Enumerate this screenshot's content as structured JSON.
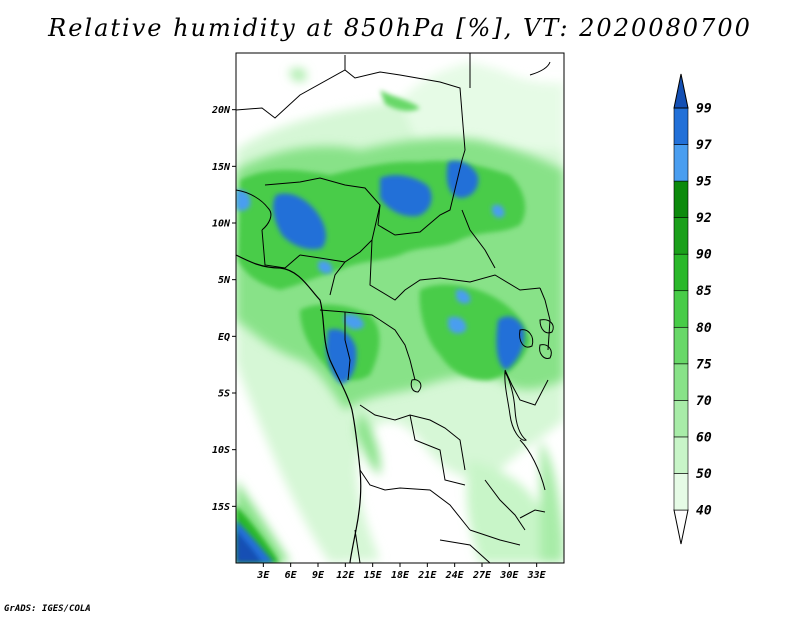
{
  "title": "Relative humidity at 850hPa [%], VT: 2020080700",
  "credit": "GrADS: IGES/COLA",
  "map": {
    "lon_range": [
      0,
      36
    ],
    "lat_range": [
      -20,
      25
    ],
    "lat_ticks": [
      {
        "value": 20,
        "label": "20N"
      },
      {
        "value": 15,
        "label": "15N"
      },
      {
        "value": 10,
        "label": "10N"
      },
      {
        "value": 5,
        "label": "5N"
      },
      {
        "value": 0,
        "label": "EQ"
      },
      {
        "value": -5,
        "label": "5S"
      },
      {
        "value": -10,
        "label": "10S"
      },
      {
        "value": -15,
        "label": "15S"
      }
    ],
    "lon_ticks": [
      {
        "value": 3,
        "label": "3E"
      },
      {
        "value": 6,
        "label": "6E"
      },
      {
        "value": 9,
        "label": "9E"
      },
      {
        "value": 12,
        "label": "12E"
      },
      {
        "value": 15,
        "label": "15E"
      },
      {
        "value": 18,
        "label": "18E"
      },
      {
        "value": 21,
        "label": "21E"
      },
      {
        "value": 24,
        "label": "24E"
      },
      {
        "value": 27,
        "label": "27E"
      },
      {
        "value": 30,
        "label": "30E"
      },
      {
        "value": 33,
        "label": "33E"
      }
    ]
  },
  "colorbar": {
    "levels": [
      "40",
      "50",
      "60",
      "70",
      "75",
      "80",
      "85",
      "90",
      "92",
      "95",
      "97",
      "99"
    ],
    "colors": [
      "#ffffff",
      "#e6fbe6",
      "#c8f5c8",
      "#a8eca8",
      "#88e288",
      "#68d868",
      "#48cc48",
      "#2ab82a",
      "#1aa01a",
      "#0c8a0c",
      "#4a9ef0",
      "#2270d8",
      "#1450b4"
    ]
  }
}
